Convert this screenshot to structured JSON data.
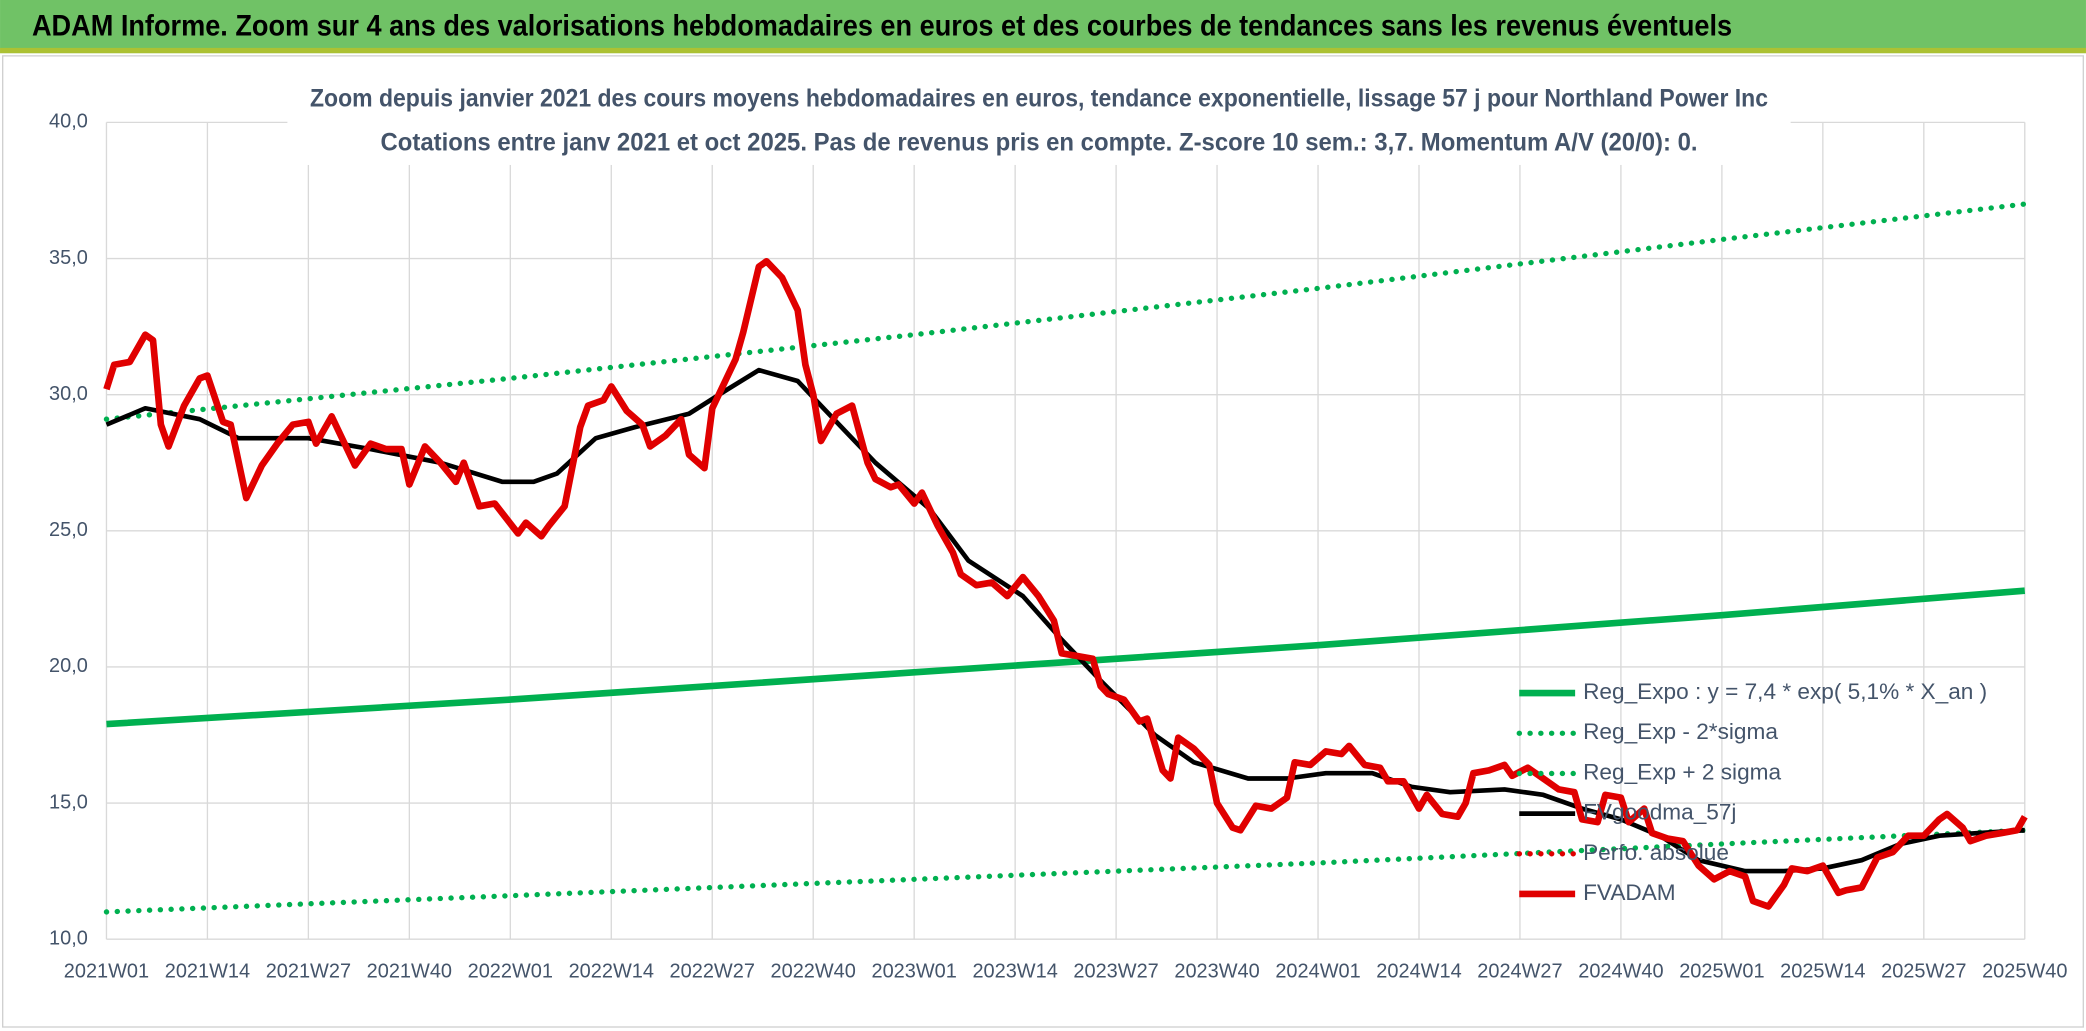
{
  "header": {
    "title": "ADAM Informe. Zoom sur 4 ans des valorisations hebdomadaires en euros et des courbes de tendances sans les revenus éventuels"
  },
  "chart_data": {
    "type": "line",
    "title": "Zoom depuis janvier 2021 des cours moyens hebdomadaires en euros, tendance exponentielle, lissage 57 j pour Northland Power Inc",
    "subtitle": "Cotations entre janv 2021 et oct 2025. Pas de revenus pris en compte. Z-score 10 sem.: 3,7. Momentum A/V (20/0): 0.",
    "categories": [
      "2021W01",
      null,
      null,
      null,
      null,
      null,
      null,
      null,
      null,
      null,
      null,
      null,
      null,
      "2021W14",
      null,
      null,
      null,
      null,
      null,
      null,
      null,
      null,
      null,
      null,
      null,
      null,
      "2021W27",
      null,
      null,
      null,
      null,
      null,
      null,
      null,
      null,
      null,
      null,
      null,
      null,
      "2021W40",
      null,
      null,
      null,
      null,
      null,
      null,
      null,
      null,
      null,
      null,
      null,
      null,
      "2022W01",
      null,
      null,
      null,
      null,
      null,
      null,
      null,
      null,
      null,
      null,
      null,
      null,
      "2022W14",
      null,
      null,
      null,
      null,
      null,
      null,
      null,
      null,
      null,
      null,
      null,
      null,
      "2022W27",
      null,
      null,
      null,
      null,
      null,
      null,
      null,
      null,
      null,
      null,
      null,
      null,
      "2022W40",
      null,
      null,
      null,
      null,
      null,
      null,
      null,
      null,
      null,
      null,
      null,
      null,
      "2023W01",
      null,
      null,
      null,
      null,
      null,
      null,
      null,
      null,
      null,
      null,
      null,
      null,
      "2023W14",
      null,
      null,
      null,
      null,
      null,
      null,
      null,
      null,
      null,
      null,
      null,
      null,
      "2023W27",
      null,
      null,
      null,
      null,
      null,
      null,
      null,
      null,
      null,
      null,
      null,
      null,
      "2023W40",
      null,
      null,
      null,
      null,
      null,
      null,
      null,
      null,
      null,
      null,
      null,
      null,
      "2024W01",
      null,
      null,
      null,
      null,
      null,
      null,
      null,
      null,
      null,
      null,
      null,
      null,
      "2024W14",
      null,
      null,
      null,
      null,
      null,
      null,
      null,
      null,
      null,
      null,
      null,
      null,
      "2024W27",
      null,
      null,
      null,
      null,
      null,
      null,
      null,
      null,
      null,
      null,
      null,
      null,
      "2024W40",
      null,
      null,
      null,
      null,
      null,
      null,
      null,
      null,
      null,
      null,
      null,
      null,
      "2025W01",
      null,
      null,
      null,
      null,
      null,
      null,
      null,
      null,
      null,
      null,
      null,
      null,
      "2025W14",
      null,
      null,
      null,
      null,
      null,
      null,
      null,
      null,
      null,
      null,
      null,
      null,
      "2025W27",
      null,
      null,
      null,
      null,
      null,
      null,
      null,
      null,
      null,
      null,
      null,
      null,
      "2025W40"
    ],
    "ylim": [
      10,
      40
    ],
    "yticks": [
      {
        "value": 10,
        "label": "10,0"
      },
      {
        "value": 15,
        "label": "15,0"
      },
      {
        "value": 20,
        "label": "20,0"
      },
      {
        "value": 25,
        "label": "25,0"
      },
      {
        "value": 30,
        "label": "30,0"
      },
      {
        "value": 35,
        "label": "35,0"
      },
      {
        "value": 40,
        "label": "40,0"
      }
    ],
    "grid": true,
    "series": [
      {
        "name": "Reg_Expo : y = 7,4 * exp( 5,1% *  X_an )",
        "color": "#00b050",
        "style": "solid",
        "x": [
          0,
          52,
          104,
          156,
          208,
          247
        ],
        "values": [
          17.9,
          18.8,
          19.8,
          20.8,
          21.9,
          22.8
        ]
      },
      {
        "name": "Reg_Exp - 2*sigma",
        "color": "#00b050",
        "style": "dotted",
        "x": [
          0,
          52,
          104,
          156,
          208,
          247
        ],
        "values": [
          11.0,
          11.6,
          12.2,
          12.8,
          13.5,
          14.0
        ]
      },
      {
        "name": "Reg_Exp + 2 sigma",
        "color": "#00b050",
        "style": "dotted",
        "x": [
          0,
          52,
          104,
          156,
          208,
          247
        ],
        "values": [
          29.1,
          30.6,
          32.2,
          33.9,
          35.7,
          37.0
        ]
      },
      {
        "name": "FVgoodma_57j",
        "color": "#000000",
        "style": "solid",
        "x": [
          0,
          5,
          12,
          17,
          26,
          34,
          43,
          51,
          55,
          58,
          63,
          68,
          75,
          80,
          84,
          89,
          92,
          99,
          106,
          111,
          118,
          123,
          128,
          135,
          140,
          147,
          152,
          157,
          163,
          168,
          173,
          180,
          185,
          190,
          195,
          200,
          205,
          211,
          216,
          221,
          226,
          231,
          236,
          241,
          247
        ],
        "values": [
          28.9,
          29.5,
          29.1,
          28.4,
          28.4,
          28.0,
          27.5,
          26.8,
          26.8,
          27.1,
          28.4,
          28.8,
          29.3,
          30.2,
          30.9,
          30.5,
          29.6,
          27.5,
          25.8,
          23.9,
          22.6,
          21.0,
          19.5,
          17.5,
          16.5,
          15.9,
          15.9,
          16.1,
          16.1,
          15.6,
          15.4,
          15.5,
          15.3,
          14.8,
          14.4,
          13.8,
          12.9,
          12.5,
          12.5,
          12.6,
          12.9,
          13.5,
          13.8,
          13.9,
          14.0
        ]
      },
      {
        "name": "Perfo. absolue",
        "color": "#e00000",
        "style": "dotted",
        "x": [],
        "values": []
      },
      {
        "name": "FVADAM",
        "color": "#e00000",
        "style": "thick",
        "x": [
          0,
          1,
          3,
          5,
          6,
          7,
          8,
          10,
          12,
          13,
          15,
          16,
          18,
          20,
          22,
          24,
          26,
          27,
          29,
          32,
          34,
          36,
          38,
          39,
          41,
          43,
          45,
          46,
          48,
          50,
          53,
          54,
          56,
          57,
          59,
          61,
          62,
          64,
          65,
          67,
          69,
          70,
          72,
          74,
          75,
          77,
          78,
          81,
          82,
          84,
          85,
          87,
          89,
          90,
          91,
          92,
          94,
          96,
          98,
          99,
          101,
          102,
          104,
          105,
          107,
          109,
          110,
          112,
          114,
          116,
          118,
          120,
          122,
          123,
          125,
          127,
          128,
          129,
          131,
          133,
          134,
          136,
          137,
          138,
          140,
          142,
          143,
          145,
          146,
          148,
          150,
          152,
          153,
          155,
          157,
          159,
          160,
          162,
          164,
          165,
          167,
          169,
          170,
          172,
          174,
          175,
          176,
          178,
          180,
          181,
          183,
          185,
          187,
          189,
          190,
          192,
          193,
          195,
          196,
          198,
          199,
          201,
          203,
          205,
          207,
          209,
          211,
          212,
          214,
          216,
          217,
          219,
          221,
          223,
          224,
          226,
          228,
          230,
          232,
          234,
          236,
          237,
          239,
          240,
          242,
          244,
          246,
          247
        ],
        "values": [
          30.2,
          31.1,
          31.2,
          32.2,
          32.0,
          28.9,
          28.1,
          29.6,
          30.6,
          30.7,
          29.0,
          28.9,
          26.2,
          27.4,
          28.2,
          28.9,
          29.0,
          28.2,
          29.2,
          27.4,
          28.2,
          28.0,
          28.0,
          26.7,
          28.1,
          27.5,
          26.8,
          27.5,
          25.9,
          26.0,
          24.9,
          25.3,
          24.8,
          25.2,
          25.9,
          28.8,
          29.6,
          29.8,
          30.3,
          29.4,
          28.9,
          28.1,
          28.5,
          29.1,
          27.8,
          27.3,
          29.5,
          31.3,
          32.3,
          34.7,
          34.9,
          34.3,
          33.1,
          31.1,
          30.0,
          28.3,
          29.3,
          29.6,
          27.5,
          26.9,
          26.6,
          26.7,
          26.0,
          26.4,
          25.2,
          24.2,
          23.4,
          23.0,
          23.1,
          22.6,
          23.3,
          22.6,
          21.7,
          20.5,
          20.4,
          20.3,
          19.3,
          19.0,
          18.8,
          18.0,
          18.1,
          16.2,
          15.9,
          17.4,
          17.0,
          16.4,
          15.0,
          14.1,
          14.0,
          14.9,
          14.8,
          15.2,
          16.5,
          16.4,
          16.9,
          16.8,
          17.1,
          16.4,
          16.3,
          15.8,
          15.8,
          14.8,
          15.3,
          14.6,
          14.5,
          15.0,
          16.1,
          16.2,
          16.4,
          16.0,
          16.3,
          15.9,
          15.5,
          15.4,
          14.4,
          14.3,
          15.3,
          15.2,
          14.3,
          14.8,
          13.9,
          13.7,
          13.6,
          12.7,
          12.2,
          12.5,
          12.3,
          11.4,
          11.2,
          12.0,
          12.6,
          12.5,
          12.7,
          11.7,
          11.8,
          11.9,
          13.0,
          13.2,
          13.8,
          13.8,
          14.4,
          14.6,
          14.1,
          13.6,
          13.8,
          13.9,
          14.0,
          14.5
        ]
      }
    ]
  }
}
